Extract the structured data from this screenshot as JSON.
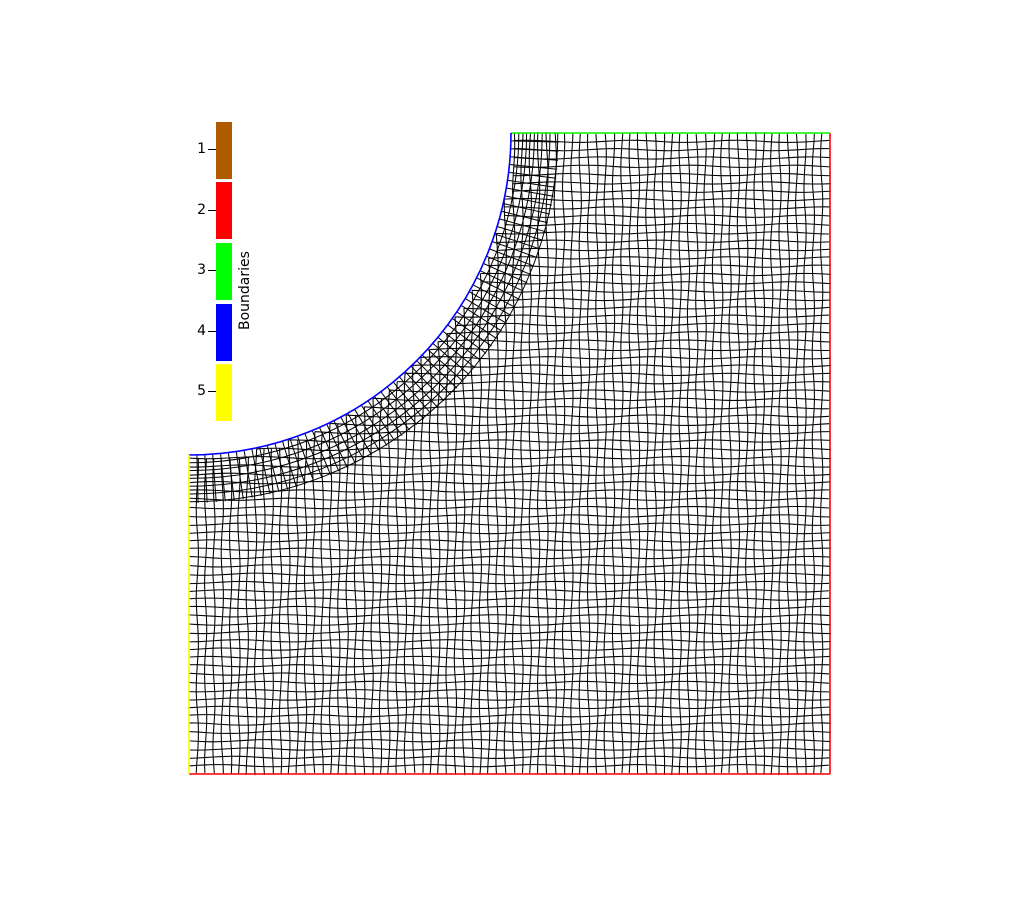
{
  "legend": {
    "title": "Boundaries",
    "entries": [
      {
        "label": "1",
        "color": "#b05a00"
      },
      {
        "label": "2",
        "color": "#ff0000"
      },
      {
        "label": "3",
        "color": "#00ff00"
      },
      {
        "label": "4",
        "color": "#0000ff"
      },
      {
        "label": "5",
        "color": "#ffff00"
      }
    ]
  },
  "mesh": {
    "line_color": "#000000",
    "boundary_colors": {
      "bottom": "#ff0000",
      "right": "#ff0000",
      "top": "#00ff00",
      "arc": "#0000ff",
      "left": "#ffff00"
    }
  }
}
